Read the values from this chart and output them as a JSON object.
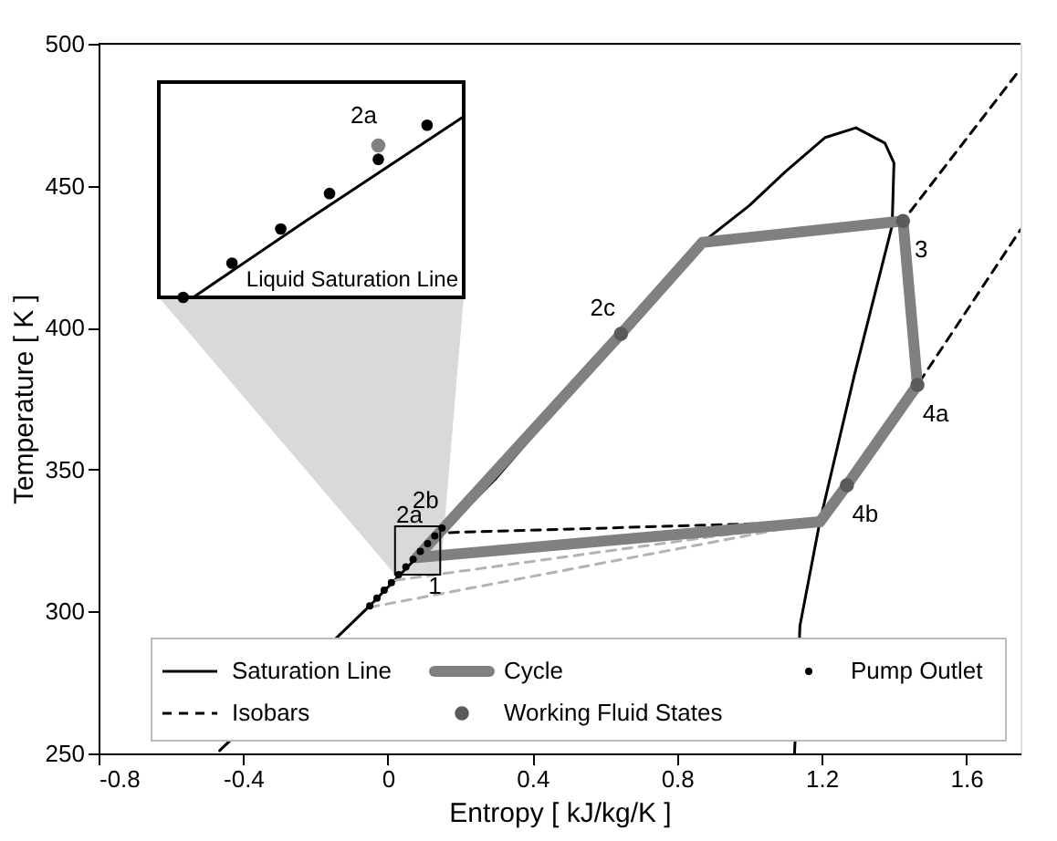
{
  "chart_data": {
    "type": "line",
    "xlabel": "Entropy [ kJ/kg/K ]",
    "ylabel": "Temperature [ K ]",
    "xlim": [
      -0.8,
      1.75
    ],
    "ylim": [
      250,
      500
    ],
    "xticks": [
      -0.8,
      -0.4,
      0,
      0.4,
      0.8,
      1.2,
      1.6
    ],
    "yticks": [
      250,
      300,
      350,
      400,
      450,
      500
    ],
    "grid": false,
    "legend": "bottom",
    "series": [
      {
        "name": "Saturation Line",
        "line_style": "solid",
        "color": "#000000",
        "x": [
          -0.465,
          -0.05,
          0.08,
          0.3,
          0.645,
          0.87,
          1.0,
          1.1,
          1.21,
          1.295,
          1.375,
          1.4,
          1.395,
          1.29,
          1.195,
          1.14,
          1.125
        ],
        "values": [
          251,
          302,
          319,
          347,
          398,
          430,
          443,
          455,
          467,
          470.4,
          465,
          458,
          436,
          383,
          331.6,
          295,
          250
        ]
      },
      {
        "name": "Isobars",
        "line_style": "dashed",
        "color": "#000000",
        "x": [
          0.87,
          1.425,
          1.75
        ],
        "values": [
          430,
          437.6,
          491.2
        ]
      },
      {
        "line_style": "dashed",
        "color": "#000000",
        "x": [
          0.17,
          1.195,
          1.27,
          1.465,
          1.75
        ],
        "values": [
          327.8,
          331.6,
          344.5,
          379.8,
          434.5
        ]
      },
      {
        "line_style": "dashed",
        "color": "#b3b3b3",
        "x": [
          0.02,
          1.195
        ],
        "values": [
          311,
          331.6
        ]
      },
      {
        "line_style": "dashed",
        "color": "#b3b3b3",
        "x": [
          -0.05,
          1.195
        ],
        "values": [
          301.5,
          331.6
        ]
      },
      {
        "name": "Cycle",
        "line_style": "solid",
        "color": "#808080",
        "x": [
          0.08,
          0.645,
          0.87,
          1.425,
          1.465,
          1.27,
          1.195
        ],
        "values": [
          319,
          397.8,
          430,
          437.6,
          379.8,
          344.5,
          331.6
        ]
      },
      {
        "line_style": "solid",
        "color": "#808080",
        "x": [
          1.195,
          0.08
        ],
        "values": [
          331.6,
          319
        ]
      },
      {
        "name": "Working Fluid States",
        "type": "scatter",
        "marker": "circle",
        "color": "#5a5a5a",
        "x": [
          0.645,
          1.425,
          1.465,
          1.27
        ],
        "values": [
          397.8,
          437.6,
          379.8,
          344.5
        ]
      },
      {
        "name": "Pump Outlet",
        "type": "scatter",
        "marker": "circle",
        "color": "#000000",
        "x": [
          -0.05,
          -0.03,
          -0.01,
          0.01,
          0.03,
          0.05,
          0.07,
          0.09,
          0.11,
          0.13,
          0.15
        ],
        "values": [
          302,
          304.7,
          307.5,
          310.2,
          313,
          315.7,
          318.4,
          321.2,
          323.9,
          326.6,
          329.4
        ]
      }
    ],
    "annotations": [
      {
        "text": "1",
        "x": 0.08,
        "y": 319
      },
      {
        "text": "2a",
        "x": 0.11,
        "y": 325
      },
      {
        "text": "2b",
        "x": 0.155,
        "y": 330
      },
      {
        "text": "2c",
        "x": 0.645,
        "y": 397.8
      },
      {
        "text": "3",
        "x": 1.425,
        "y": 437.6
      },
      {
        "text": "4a",
        "x": 1.465,
        "y": 379.8
      },
      {
        "text": "4b",
        "x": 1.27,
        "y": 344.5
      },
      "Liquid Saturation Line",
      "2a"
    ]
  }
}
